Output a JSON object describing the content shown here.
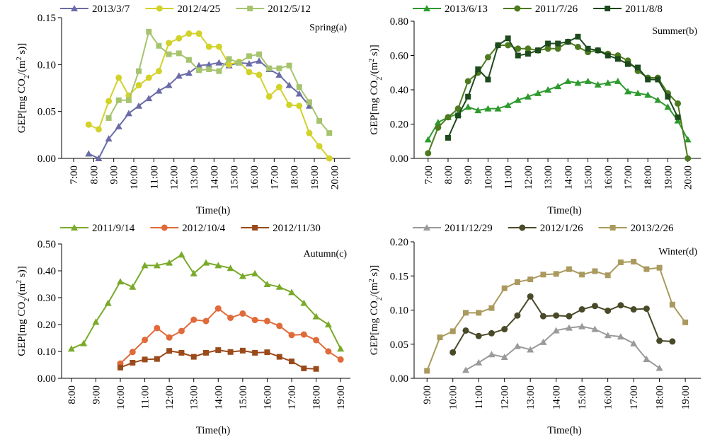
{
  "chart_data": [
    {
      "type": "line",
      "annotation": "Spring(a)",
      "xlabel": "Time(h)",
      "ylabel": [
        "GEP[mg CO",
        "2",
        "/(m",
        "2",
        " s)]"
      ],
      "xlim": [
        6.4,
        20.8
      ],
      "xticks": [
        {
          "value": 7,
          "label": "7:00"
        },
        {
          "value": 8,
          "label": "8:00"
        },
        {
          "value": 9,
          "label": "9:00"
        },
        {
          "value": 10,
          "label": "10:00"
        },
        {
          "value": 11,
          "label": "11:00"
        },
        {
          "value": 12,
          "label": "12:00"
        },
        {
          "value": 13,
          "label": "13:00"
        },
        {
          "value": 14,
          "label": "14:00"
        },
        {
          "value": 15,
          "label": "15:00"
        },
        {
          "value": 16,
          "label": "16:00"
        },
        {
          "value": 17,
          "label": "17:00"
        },
        {
          "value": 18,
          "label": "18:00"
        },
        {
          "value": 19,
          "label": "19:00"
        },
        {
          "value": 20,
          "label": "20:00"
        }
      ],
      "ylim": [
        0,
        0.15
      ],
      "yticks": [
        {
          "value": 0,
          "label": "0.00"
        },
        0.05,
        {
          "value": 0.1,
          "label": "0.10"
        },
        0.15
      ],
      "x": [
        7.75,
        8.25,
        8.75,
        9.25,
        9.75,
        10.25,
        10.75,
        11.25,
        11.75,
        12.25,
        12.75,
        13.25,
        13.75,
        14.25,
        14.75,
        15.25,
        15.75,
        16.25,
        16.75,
        17.25,
        17.75,
        18.25,
        18.75,
        19.25,
        19.75
      ],
      "series": [
        {
          "name": "2013/3/7",
          "color": "#6b6ba8",
          "marker": "triangle",
          "values": [
            0.005,
            0.0,
            0.021,
            0.034,
            0.048,
            0.056,
            0.064,
            0.072,
            0.078,
            0.088,
            0.091,
            0.099,
            0.1,
            0.102,
            0.099,
            0.102,
            0.101,
            0.104,
            0.095,
            0.089,
            0.078,
            0.069,
            0.056,
            null,
            null
          ]
        },
        {
          "name": "2012/4/25",
          "color": "#d2d22a",
          "marker": "circle",
          "values": [
            0.036,
            0.031,
            0.061,
            0.086,
            0.067,
            0.078,
            0.086,
            0.093,
            0.123,
            0.128,
            0.133,
            0.133,
            0.119,
            0.119,
            0.1,
            0.103,
            0.092,
            0.089,
            0.066,
            0.076,
            0.057,
            0.056,
            0.027,
            0.013,
            0.0
          ]
        },
        {
          "name": "2012/5/12",
          "color": "#a6c46e",
          "marker": "square",
          "values": [
            null,
            null,
            0.043,
            0.062,
            0.062,
            0.093,
            0.135,
            0.12,
            0.111,
            0.112,
            0.105,
            0.094,
            0.095,
            0.093,
            0.106,
            0.102,
            0.109,
            0.111,
            0.096,
            0.096,
            0.099,
            0.076,
            0.06,
            0.04,
            0.027
          ]
        }
      ]
    },
    {
      "type": "line",
      "annotation": "Summer(b)",
      "xlabel": "Time(h)",
      "ylabel": [
        "GEP[mg CO",
        "2",
        "/(m",
        "2",
        " s)]"
      ],
      "xlim": [
        6.3,
        20.65
      ],
      "xticks": [
        {
          "value": 7,
          "label": "7:00"
        },
        {
          "value": 8,
          "label": "8:00"
        },
        {
          "value": 9,
          "label": "9:00"
        },
        {
          "value": 10,
          "label": "10:00"
        },
        {
          "value": 11,
          "label": "11:00"
        },
        {
          "value": 12,
          "label": "12:00"
        },
        {
          "value": 13,
          "label": "13:00"
        },
        {
          "value": 14,
          "label": "14:00"
        },
        {
          "value": 15,
          "label": "15:00"
        },
        {
          "value": 16,
          "label": "16:00"
        },
        {
          "value": 17,
          "label": "17:00"
        },
        {
          "value": 18,
          "label": "18:00"
        },
        {
          "value": 19,
          "label": "19:00"
        },
        {
          "value": 20,
          "label": "20:00"
        }
      ],
      "ylim": [
        0,
        0.8
      ],
      "yticks": [
        {
          "value": 0,
          "label": "0.00"
        },
        {
          "value": 0.2,
          "label": "0.20"
        },
        {
          "value": 0.4,
          "label": "0.40"
        },
        {
          "value": 0.6,
          "label": "0.60"
        },
        {
          "value": 0.8,
          "label": "0.80"
        }
      ],
      "x": [
        7,
        7.5,
        8,
        8.5,
        9,
        9.5,
        10,
        10.5,
        11,
        11.5,
        12,
        12.5,
        13,
        13.5,
        14,
        14.5,
        15,
        15.5,
        16,
        16.5,
        17,
        17.5,
        18,
        18.5,
        19,
        19.5,
        20
      ],
      "series": [
        {
          "name": "2013/6/13",
          "color": "#2e9a2e",
          "marker": "triangle",
          "values": [
            0.11,
            0.21,
            0.24,
            0.26,
            0.3,
            0.28,
            0.29,
            0.29,
            0.31,
            0.34,
            0.36,
            0.38,
            0.4,
            0.42,
            0.45,
            0.44,
            0.45,
            0.43,
            0.44,
            0.45,
            0.39,
            0.38,
            0.37,
            0.34,
            0.3,
            0.22,
            0.11
          ]
        },
        {
          "name": "2011/7/26",
          "color": "#4d7a1e",
          "marker": "circle",
          "values": [
            0.03,
            0.18,
            0.24,
            0.29,
            0.45,
            0.5,
            0.59,
            0.66,
            0.66,
            0.64,
            0.64,
            0.63,
            0.64,
            0.64,
            0.68,
            0.65,
            0.62,
            0.63,
            0.61,
            0.6,
            0.57,
            0.51,
            0.47,
            0.47,
            0.38,
            0.32,
            0.0
          ]
        },
        {
          "name": "2011/8/8",
          "color": "#1c4a1c",
          "marker": "square",
          "values": [
            null,
            null,
            0.12,
            0.25,
            0.36,
            0.52,
            0.46,
            0.66,
            0.7,
            0.6,
            0.61,
            0.63,
            0.67,
            0.67,
            0.68,
            0.71,
            0.64,
            0.63,
            0.6,
            0.58,
            0.55,
            0.53,
            0.46,
            0.46,
            0.36,
            0.24,
            null
          ]
        }
      ]
    },
    {
      "type": "line",
      "annotation": "Autumn(c)",
      "xlabel": "Time(h)",
      "ylabel": [
        "GEP[mg CO",
        "2",
        "/(m",
        "2",
        " s)]"
      ],
      "xlim": [
        7.6,
        19.4
      ],
      "xticks": [
        {
          "value": 8,
          "label": "8:00"
        },
        {
          "value": 9,
          "label": "9:00"
        },
        {
          "value": 10,
          "label": "10:00"
        },
        {
          "value": 11,
          "label": "11:00"
        },
        {
          "value": 12,
          "label": "12:00"
        },
        {
          "value": 13,
          "label": "13:00"
        },
        {
          "value": 14,
          "label": "14:00"
        },
        {
          "value": 15,
          "label": "15:00"
        },
        {
          "value": 16,
          "label": "16:00"
        },
        {
          "value": 17,
          "label": "17:00"
        },
        {
          "value": 18,
          "label": "18:00"
        },
        {
          "value": 19,
          "label": "19:00"
        }
      ],
      "ylim": [
        0,
        0.5
      ],
      "yticks": [
        {
          "value": 0,
          "label": "0.00"
        },
        {
          "value": 0.1,
          "label": "0.10"
        },
        {
          "value": 0.2,
          "label": "0.20"
        },
        {
          "value": 0.3,
          "label": "0.30"
        },
        {
          "value": 0.4,
          "label": "0.40"
        },
        {
          "value": 0.5,
          "label": "0.50"
        }
      ],
      "x": [
        8,
        8.5,
        9,
        9.5,
        10,
        10.5,
        11,
        11.5,
        12,
        12.5,
        13,
        13.5,
        14,
        14.5,
        15,
        15.5,
        16,
        16.5,
        17,
        17.5,
        18,
        18.5,
        19
      ],
      "series": [
        {
          "name": "2011/9/14",
          "color": "#7aaa2a",
          "marker": "triangle",
          "values": [
            0.11,
            0.13,
            0.21,
            0.28,
            0.36,
            0.34,
            0.42,
            0.42,
            0.43,
            0.46,
            0.39,
            0.43,
            0.42,
            0.41,
            0.38,
            0.39,
            0.35,
            0.34,
            0.32,
            0.28,
            0.23,
            0.2,
            0.11
          ]
        },
        {
          "name": "2012/10/4",
          "color": "#e06a3a",
          "marker": "circle",
          "values": [
            null,
            null,
            null,
            null,
            0.055,
            0.098,
            0.143,
            0.187,
            0.152,
            0.176,
            0.218,
            0.213,
            0.26,
            0.225,
            0.241,
            0.217,
            0.213,
            0.195,
            0.161,
            0.163,
            0.142,
            0.1,
            0.07
          ]
        },
        {
          "name": "2012/11/30",
          "color": "#9a4a1a",
          "marker": "square",
          "values": [
            null,
            null,
            null,
            null,
            0.04,
            0.058,
            0.07,
            0.072,
            0.102,
            0.095,
            0.08,
            0.095,
            0.105,
            0.098,
            0.103,
            0.095,
            0.097,
            0.08,
            0.063,
            0.037,
            0.035,
            null,
            null
          ]
        }
      ]
    },
    {
      "type": "line",
      "annotation": "Winter(d)",
      "xlabel": "Time(h)",
      "ylabel": [
        "GEP[mg CO",
        "2",
        "/(m",
        "2",
        " s)]"
      ],
      "xlim": [
        8.5,
        19.6
      ],
      "xticks": [
        {
          "value": 9,
          "label": "9:00"
        },
        {
          "value": 10,
          "label": "10:00"
        },
        {
          "value": 11,
          "label": "11:00"
        },
        {
          "value": 12,
          "label": "12:00"
        },
        {
          "value": 13,
          "label": "13:00"
        },
        {
          "value": 14,
          "label": "14:00"
        },
        {
          "value": 15,
          "label": "15:00"
        },
        {
          "value": 16,
          "label": "16:00"
        },
        {
          "value": 17,
          "label": "17:00"
        },
        {
          "value": 18,
          "label": "18:00"
        },
        {
          "value": 19,
          "label": "19:00"
        }
      ],
      "ylim": [
        0,
        0.2
      ],
      "yticks": [
        {
          "value": 0,
          "label": "0.00"
        },
        0.05,
        {
          "value": 0.1,
          "label": "0.10"
        },
        0.15,
        {
          "value": 0.2,
          "label": "0.20"
        }
      ],
      "x": [
        9,
        9.5,
        10,
        10.5,
        11,
        11.5,
        12,
        12.5,
        13,
        13.5,
        14,
        14.5,
        15,
        15.5,
        16,
        16.5,
        17,
        17.5,
        18,
        18.5,
        19
      ],
      "series": [
        {
          "name": "2011/12/29",
          "color": "#9a9a9a",
          "marker": "triangle",
          "values": [
            null,
            null,
            null,
            0.012,
            0.023,
            0.035,
            0.031,
            0.047,
            0.042,
            0.053,
            0.07,
            0.074,
            0.076,
            0.072,
            0.063,
            0.061,
            0.051,
            0.028,
            0.015,
            null,
            null
          ]
        },
        {
          "name": "2012/1/26",
          "color": "#4a4a2a",
          "marker": "circle",
          "values": [
            null,
            null,
            0.038,
            0.07,
            0.062,
            0.066,
            0.072,
            0.092,
            0.12,
            0.091,
            0.092,
            0.091,
            0.101,
            0.106,
            0.099,
            0.107,
            0.101,
            0.102,
            0.055,
            0.054,
            null
          ]
        },
        {
          "name": "2013/2/26",
          "color": "#aa9a5e",
          "marker": "square",
          "values": [
            0.011,
            0.06,
            0.069,
            0.096,
            0.096,
            0.103,
            0.132,
            0.141,
            0.145,
            0.152,
            0.153,
            0.16,
            0.152,
            0.157,
            0.151,
            0.17,
            0.171,
            0.16,
            0.162,
            0.108,
            0.082
          ]
        }
      ]
    }
  ]
}
